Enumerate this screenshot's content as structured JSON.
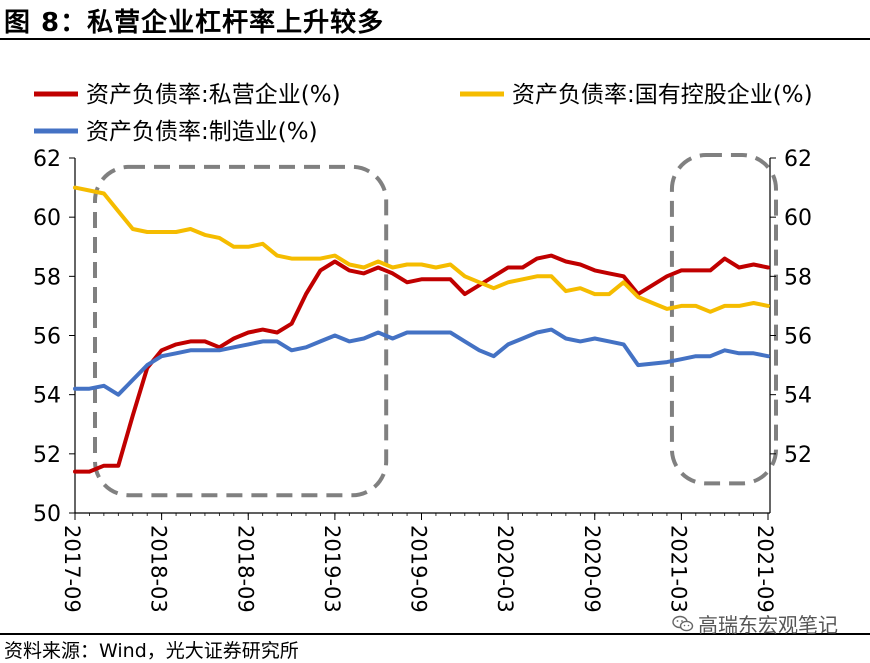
{
  "figure_title": "图 8：私营企业杠杆率上升较多",
  "source": "资料来源：Wind，光大证券研究所",
  "watermark": "高瑞东宏观笔记",
  "colors": {
    "private": "#c00000",
    "state": "#f5bc00",
    "manufacturing": "#4472c4",
    "dashed_box": "#808080",
    "axis": "#000000"
  },
  "chart_data": {
    "type": "line",
    "y_left": {
      "min": 50,
      "max": 62,
      "ticks": [
        50,
        52,
        54,
        56,
        58,
        60,
        62
      ]
    },
    "y_right": {
      "min": 50,
      "max": 62,
      "ticks": [
        52,
        54,
        56,
        58,
        60,
        62
      ]
    },
    "x_tick_labels": [
      "2017-09",
      "2018-03",
      "2018-09",
      "2019-03",
      "2019-09",
      "2020-03",
      "2020-09",
      "2021-03",
      "2021-09"
    ],
    "x": [
      "2017-09",
      "2017-10",
      "2017-11",
      "2017-12",
      "2018-01",
      "2018-02",
      "2018-03",
      "2018-04",
      "2018-05",
      "2018-06",
      "2018-07",
      "2018-08",
      "2018-09",
      "2018-10",
      "2018-11",
      "2018-12",
      "2019-01",
      "2019-02",
      "2019-03",
      "2019-04",
      "2019-05",
      "2019-06",
      "2019-07",
      "2019-08",
      "2019-09",
      "2019-10",
      "2019-11",
      "2019-12",
      "2020-01",
      "2020-02",
      "2020-03",
      "2020-04",
      "2020-05",
      "2020-06",
      "2020-07",
      "2020-08",
      "2020-09",
      "2020-10",
      "2020-11",
      "2020-12",
      "2021-01",
      "2021-02",
      "2021-03",
      "2021-04",
      "2021-05",
      "2021-06",
      "2021-07",
      "2021-08",
      "2021-09"
    ],
    "series": [
      {
        "name": "资产负债率:私营企业(%)",
        "color_key": "private",
        "values": [
          51.4,
          51.4,
          51.6,
          51.6,
          53.3,
          54.9,
          55.5,
          55.7,
          55.8,
          55.8,
          55.6,
          55.9,
          56.1,
          56.2,
          56.1,
          56.4,
          57.4,
          58.2,
          58.5,
          58.2,
          58.1,
          58.3,
          58.1,
          57.8,
          57.9,
          57.9,
          57.9,
          57.4,
          57.7,
          58.0,
          58.3,
          58.3,
          58.6,
          58.7,
          58.5,
          58.4,
          58.2,
          58.1,
          58.0,
          57.4,
          57.7,
          58.0,
          58.2,
          58.2,
          58.2,
          58.6,
          58.3,
          58.4,
          58.3
        ]
      },
      {
        "name": "资产负债率:国有控股企业(%)",
        "color_key": "state",
        "values": [
          61.0,
          60.9,
          60.8,
          60.2,
          59.6,
          59.5,
          59.5,
          59.5,
          59.6,
          59.4,
          59.3,
          59.0,
          59.0,
          59.1,
          58.7,
          58.6,
          58.6,
          58.6,
          58.7,
          58.4,
          58.3,
          58.5,
          58.3,
          58.4,
          58.4,
          58.3,
          58.4,
          58.0,
          57.8,
          57.6,
          57.8,
          57.9,
          58.0,
          58.0,
          57.5,
          57.6,
          57.4,
          57.4,
          57.8,
          57.3,
          57.1,
          56.9,
          57.0,
          57.0,
          56.8,
          57.0,
          57.0,
          57.1,
          57.0
        ]
      },
      {
        "name": "资产负债率:制造业(%)",
        "color_key": "manufacturing",
        "values": [
          54.2,
          54.2,
          54.3,
          54.0,
          54.5,
          55.0,
          55.3,
          55.4,
          55.5,
          55.5,
          55.5,
          55.6,
          55.7,
          55.8,
          55.8,
          55.5,
          55.6,
          55.8,
          56.0,
          55.8,
          55.9,
          56.1,
          55.9,
          56.1,
          56.1,
          56.1,
          56.1,
          55.8,
          55.5,
          55.3,
          55.7,
          55.9,
          56.1,
          56.2,
          55.9,
          55.8,
          55.9,
          55.8,
          55.7,
          55.0,
          55.05,
          55.1,
          55.2,
          55.3,
          55.3,
          55.5,
          55.4,
          55.4,
          55.3
        ]
      }
    ],
    "legend_rows": [
      [
        "资产负债率:私营企业(%)",
        "资产负债率:国有控股企业(%)"
      ],
      [
        "资产负债率:制造业(%)"
      ]
    ],
    "legend": "top",
    "highlight_boxes": [
      {
        "x_from": "2017-09",
        "x_to": "2019-06",
        "y_from": 50.6,
        "y_to": 61.7
      },
      {
        "x_from": "2021-02",
        "x_to": "2021-09",
        "y_from": 51.0,
        "y_to": 62.1
      }
    ]
  }
}
